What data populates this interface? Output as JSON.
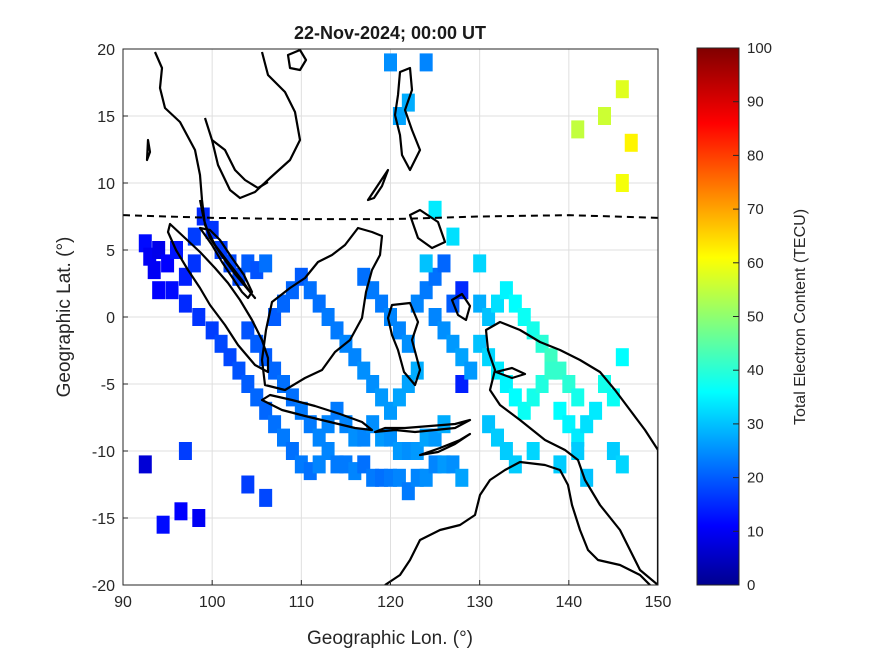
{
  "chart_data": {
    "type": "heatmap",
    "title": "22-Nov-2024; 00:00 UT",
    "xlabel": "Geographic Lon. (°)",
    "ylabel": "Geographic Lat. (°)",
    "xlim": [
      90,
      150
    ],
    "ylim": [
      -20,
      20
    ],
    "xticks": [
      90,
      100,
      110,
      120,
      130,
      140,
      150
    ],
    "yticks": [
      -20,
      -15,
      -10,
      -5,
      0,
      5,
      10,
      15,
      20
    ],
    "grid": true,
    "colorbar": {
      "label": "Total Electron Content (TECU)",
      "range": [
        0,
        100
      ],
      "ticks": [
        0,
        10,
        20,
        30,
        40,
        50,
        60,
        70,
        80,
        90,
        100
      ],
      "colormap": "jet"
    },
    "dip_equator": {
      "style": "dashed",
      "lon": [
        90,
        100,
        110,
        120,
        130,
        140,
        150
      ],
      "lat": [
        7.6,
        7.4,
        7.3,
        7.3,
        7.5,
        7.6,
        7.4
      ]
    },
    "tec_points": [
      [
        92.5,
        5.5,
        12
      ],
      [
        93,
        4.5,
        10
      ],
      [
        94,
        5,
        9
      ],
      [
        95,
        4,
        11
      ],
      [
        96,
        5,
        13
      ],
      [
        93.5,
        3.5,
        10
      ],
      [
        95.5,
        2,
        12
      ],
      [
        94,
        2,
        11
      ],
      [
        97,
        3,
        14
      ],
      [
        98,
        4,
        16
      ],
      [
        99,
        7.5,
        15
      ],
      [
        98,
        6,
        17
      ],
      [
        100,
        6.5,
        16
      ],
      [
        101,
        5,
        17
      ],
      [
        102,
        4,
        18
      ],
      [
        103,
        3,
        18
      ],
      [
        104,
        4,
        20
      ],
      [
        105,
        3.5,
        19
      ],
      [
        106,
        4,
        22
      ],
      [
        97,
        1,
        15
      ],
      [
        98.5,
        0,
        16
      ],
      [
        100,
        -1,
        17
      ],
      [
        101,
        -2,
        18
      ],
      [
        102,
        -3,
        18
      ],
      [
        103,
        -4,
        19
      ],
      [
        104,
        -5,
        20
      ],
      [
        105,
        -6,
        21
      ],
      [
        106,
        -7,
        21
      ],
      [
        107,
        -8,
        22
      ],
      [
        108,
        -9,
        23
      ],
      [
        109,
        -10,
        22
      ],
      [
        110,
        -11,
        23
      ],
      [
        111,
        -11.5,
        22
      ],
      [
        112,
        -11,
        24
      ],
      [
        113,
        -10,
        24
      ],
      [
        114,
        -11,
        23
      ],
      [
        115,
        -11,
        23
      ],
      [
        116,
        -11.5,
        24
      ],
      [
        117,
        -11,
        22
      ],
      [
        118,
        -12,
        23
      ],
      [
        119,
        -12,
        22
      ],
      [
        120,
        -12,
        23
      ],
      [
        121,
        -12,
        24
      ],
      [
        122,
        -13,
        23
      ],
      [
        123,
        -12,
        24
      ],
      [
        124,
        -12,
        25
      ],
      [
        125,
        -11,
        24
      ],
      [
        126,
        -11,
        26
      ],
      [
        127,
        -11,
        25
      ],
      [
        128,
        -12,
        27
      ],
      [
        104,
        -1,
        19
      ],
      [
        105,
        -2,
        20
      ],
      [
        106,
        -3,
        20
      ],
      [
        107,
        -4,
        21
      ],
      [
        108,
        -5,
        22
      ],
      [
        109,
        -6,
        22
      ],
      [
        110,
        -7,
        23
      ],
      [
        111,
        -8,
        23
      ],
      [
        112,
        -9,
        24
      ],
      [
        113,
        -8,
        24
      ],
      [
        114,
        -7,
        23
      ],
      [
        115,
        -8,
        24
      ],
      [
        116,
        -9,
        25
      ],
      [
        117,
        -9,
        24
      ],
      [
        118,
        -8,
        25
      ],
      [
        119,
        -9,
        26
      ],
      [
        120,
        -9,
        25
      ],
      [
        121,
        -10,
        26
      ],
      [
        122,
        -10,
        25
      ],
      [
        123,
        -10,
        26
      ],
      [
        124,
        -9,
        27
      ],
      [
        125,
        -9,
        26
      ],
      [
        126,
        -8,
        28
      ],
      [
        107,
        0,
        20
      ],
      [
        108,
        1,
        21
      ],
      [
        109,
        2,
        21
      ],
      [
        110,
        3,
        20
      ],
      [
        111,
        2,
        22
      ],
      [
        112,
        1,
        22
      ],
      [
        113,
        0,
        23
      ],
      [
        114,
        -1,
        23
      ],
      [
        115,
        -2,
        24
      ],
      [
        116,
        -3,
        24
      ],
      [
        117,
        -4,
        25
      ],
      [
        118,
        -5,
        25
      ],
      [
        119,
        -6,
        26
      ],
      [
        120,
        -7,
        26
      ],
      [
        121,
        -6,
        27
      ],
      [
        122,
        -5,
        27
      ],
      [
        123,
        -4,
        28
      ],
      [
        117,
        3,
        22
      ],
      [
        118,
        2,
        23
      ],
      [
        119,
        1,
        23
      ],
      [
        120,
        0,
        24
      ],
      [
        121,
        -1,
        24
      ],
      [
        122,
        -2,
        25
      ],
      [
        123,
        1,
        24
      ],
      [
        124,
        2,
        23
      ],
      [
        125,
        3,
        22
      ],
      [
        126,
        4,
        21
      ],
      [
        127,
        1,
        20
      ],
      [
        128,
        2,
        15
      ],
      [
        125,
        0,
        24
      ],
      [
        126,
        -1,
        25
      ],
      [
        127,
        -2,
        26
      ],
      [
        128,
        -3,
        27
      ],
      [
        128,
        -5,
        14
      ],
      [
        129,
        -4,
        26
      ],
      [
        130,
        1,
        28
      ],
      [
        131,
        0,
        30
      ],
      [
        132,
        1,
        33
      ],
      [
        133,
        2,
        35
      ],
      [
        134,
        1,
        36
      ],
      [
        135,
        0,
        37
      ],
      [
        136,
        -1,
        38
      ],
      [
        137,
        -2,
        40
      ],
      [
        138,
        -3,
        42
      ],
      [
        139,
        -4,
        41
      ],
      [
        140,
        -5,
        40
      ],
      [
        141,
        -6,
        38
      ],
      [
        130,
        -2,
        30
      ],
      [
        131,
        -3,
        32
      ],
      [
        132,
        -4,
        34
      ],
      [
        133,
        -5,
        35
      ],
      [
        134,
        -6,
        36
      ],
      [
        135,
        -7,
        37
      ],
      [
        136,
        -6,
        38
      ],
      [
        137,
        -5,
        39
      ],
      [
        138,
        -4,
        41
      ],
      [
        139,
        -7,
        36
      ],
      [
        140,
        -8,
        35
      ],
      [
        141,
        -9,
        34
      ],
      [
        142,
        -8,
        33
      ],
      [
        143,
        -7,
        34
      ],
      [
        144,
        -5,
        38
      ],
      [
        145,
        -6,
        37
      ],
      [
        146,
        -3,
        36
      ],
      [
        131,
        -8,
        30
      ],
      [
        132,
        -9,
        31
      ],
      [
        133,
        -10,
        31
      ],
      [
        134,
        -11,
        31
      ],
      [
        136,
        -10,
        32
      ],
      [
        139,
        -11,
        31
      ],
      [
        142,
        -12,
        30
      ],
      [
        145,
        -10,
        31
      ],
      [
        146,
        -11,
        32
      ],
      [
        141,
        -10,
        31
      ],
      [
        130,
        4,
        32
      ],
      [
        127,
        6,
        33
      ],
      [
        125,
        8,
        34
      ],
      [
        124,
        4,
        30
      ],
      [
        121,
        15,
        27
      ],
      [
        122,
        16,
        28
      ],
      [
        120,
        19,
        25
      ],
      [
        124,
        19,
        24
      ],
      [
        141,
        14,
        55
      ],
      [
        144,
        15,
        56
      ],
      [
        146,
        17,
        58
      ],
      [
        147,
        13,
        62
      ],
      [
        146,
        10,
        60
      ],
      [
        92.5,
        -11,
        7
      ],
      [
        97,
        -10,
        17
      ],
      [
        96.5,
        -14.5,
        11
      ],
      [
        94.5,
        -15.5,
        12
      ],
      [
        98.5,
        -15,
        10
      ],
      [
        104,
        -12.5,
        17
      ],
      [
        106,
        -13.5,
        18
      ]
    ]
  }
}
